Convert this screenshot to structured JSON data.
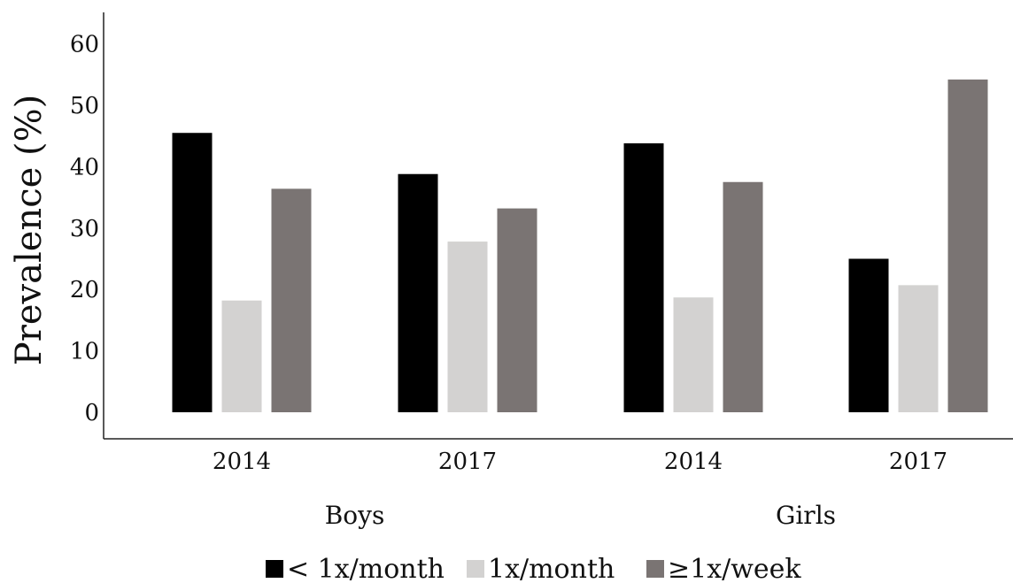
{
  "chart_data": {
    "type": "bar",
    "ylabel": "Prevalence (%)",
    "xlabel": "",
    "ylim": [
      0,
      65
    ],
    "yticks": [
      0,
      10,
      20,
      30,
      40,
      50,
      60
    ],
    "categories": [
      "2014",
      "2017",
      "2014",
      "2017"
    ],
    "groups": [
      {
        "label": "Boys",
        "categories": [
          0,
          1
        ]
      },
      {
        "label": "Girls",
        "categories": [
          2,
          3
        ]
      }
    ],
    "series": [
      {
        "name": "< 1x/month",
        "color": "#000000",
        "values": [
          45.5,
          38.8,
          43.8,
          25.0
        ]
      },
      {
        "name": "1x/month",
        "color": "#d3d2d1",
        "values": [
          18.2,
          27.8,
          18.7,
          20.7
        ]
      },
      {
        "name": "≥1x/week",
        "color": "#7a7473",
        "values": [
          36.4,
          33.2,
          37.5,
          54.2
        ]
      }
    ],
    "grid": false,
    "legend_position": "bottom"
  }
}
